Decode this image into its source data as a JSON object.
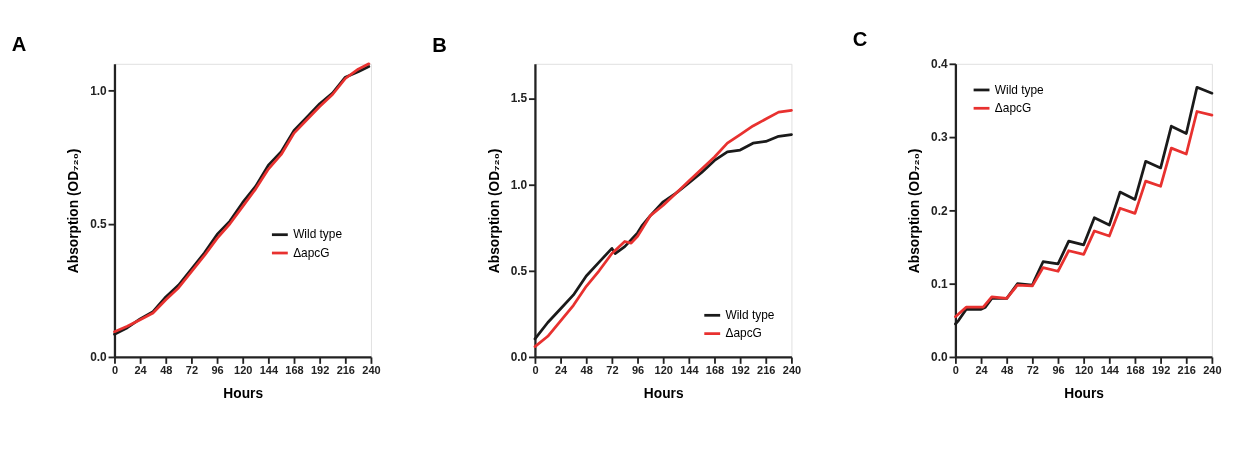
{
  "chart_data": [
    {
      "type": "line",
      "title": "A",
      "xlabel": "Hours",
      "ylabel": "Absorption (OD₇₂₀)",
      "xlim": [
        0,
        240
      ],
      "xticks": [
        0,
        24,
        48,
        72,
        96,
        120,
        144,
        168,
        192,
        216,
        240
      ],
      "ylim": [
        0,
        1.1
      ],
      "yticks": [
        {
          "value": 0,
          "label": "0.0"
        },
        {
          "value": 0.5,
          "label": "0.5"
        },
        {
          "value": 1,
          "label": "1.0"
        }
      ],
      "grid": false,
      "legend": "right",
      "line_style": "solid",
      "series": [
        {
          "name": "Wild type",
          "color": "#1a1a1a",
          "x": [
            0,
            12,
            24,
            36,
            48,
            60,
            72,
            84,
            96,
            108,
            120,
            132,
            144,
            156,
            168,
            180,
            192,
            204,
            216,
            228,
            238
          ],
          "values": [
            0.085,
            0.11,
            0.143,
            0.17,
            0.225,
            0.27,
            0.33,
            0.39,
            0.46,
            0.51,
            0.58,
            0.64,
            0.72,
            0.77,
            0.85,
            0.9,
            0.95,
            0.99,
            1.05,
            1.07,
            1.09
          ]
        },
        {
          "name": "ΔapcG",
          "color": "#e8312f",
          "x": [
            0,
            12,
            24,
            36,
            48,
            60,
            72,
            84,
            96,
            108,
            120,
            132,
            144,
            156,
            168,
            180,
            192,
            204,
            216,
            228,
            238
          ],
          "values": [
            0.095,
            0.115,
            0.14,
            0.165,
            0.215,
            0.26,
            0.32,
            0.38,
            0.445,
            0.5,
            0.565,
            0.63,
            0.705,
            0.76,
            0.84,
            0.89,
            0.94,
            0.985,
            1.045,
            1.08,
            1.1
          ]
        }
      ]
    },
    {
      "type": "line",
      "title": "B",
      "xlabel": "Hours",
      "ylabel": "Absorption (OD₇₂₀)",
      "xlim": [
        0,
        240
      ],
      "xticks": [
        0,
        24,
        48,
        72,
        96,
        120,
        144,
        168,
        192,
        216,
        240
      ],
      "ylim": [
        0,
        1.7
      ],
      "yticks": [
        {
          "value": 0,
          "label": "0.0"
        },
        {
          "value": 0.5,
          "label": "0.5"
        },
        {
          "value": 1,
          "label": "1.0"
        },
        {
          "value": 1.5,
          "label": "1.5"
        }
      ],
      "grid": false,
      "legend": "bottom right",
      "line_style": "solid",
      "series": [
        {
          "name": "Wild type",
          "color": "#1a1a1a",
          "x": [
            0,
            12,
            24,
            36,
            48,
            60,
            72,
            75,
            84,
            96,
            100,
            108,
            120,
            132,
            144,
            156,
            168,
            180,
            192,
            204,
            216,
            228,
            240
          ],
          "values": [
            0.105,
            0.2,
            0.28,
            0.36,
            0.47,
            0.55,
            0.63,
            0.6,
            0.64,
            0.72,
            0.76,
            0.82,
            0.9,
            0.95,
            1.01,
            1.07,
            1.14,
            1.19,
            1.2,
            1.24,
            1.25,
            1.28,
            1.29
          ]
        },
        {
          "name": "ΔapcG",
          "color": "#e8312f",
          "x": [
            0,
            12,
            24,
            36,
            48,
            60,
            72,
            84,
            90,
            96,
            108,
            120,
            132,
            144,
            156,
            168,
            180,
            192,
            204,
            216,
            228,
            240
          ],
          "values": [
            0.06,
            0.12,
            0.21,
            0.3,
            0.41,
            0.5,
            0.6,
            0.67,
            0.66,
            0.7,
            0.82,
            0.88,
            0.95,
            1.02,
            1.09,
            1.16,
            1.24,
            1.29,
            1.34,
            1.38,
            1.42,
            1.43
          ]
        }
      ]
    },
    {
      "type": "line",
      "title": "C",
      "xlabel": "Hours",
      "ylabel": "Absorption (OD₇₂₀)",
      "xlim": [
        0,
        240
      ],
      "xticks": [
        0,
        24,
        48,
        72,
        96,
        120,
        144,
        168,
        192,
        216,
        240
      ],
      "ylim": [
        0,
        0.4
      ],
      "yticks": [
        {
          "value": 0,
          "label": "0.0"
        },
        0.1,
        0.2,
        0.3,
        0.4
      ],
      "grid": false,
      "legend": "top left",
      "line_style": "solid",
      "series": [
        {
          "name": "Wild type",
          "color": "#1a1a1a",
          "x": [
            0,
            3,
            10,
            24,
            28,
            34,
            46,
            48,
            58,
            72,
            74,
            82,
            96,
            106,
            120,
            130,
            144,
            154,
            168,
            178,
            192,
            202,
            216,
            226,
            240
          ],
          "values": [
            0.045,
            0.05,
            0.065,
            0.065,
            0.068,
            0.08,
            0.08,
            0.08,
            0.1,
            0.098,
            0.105,
            0.13,
            0.127,
            0.158,
            0.153,
            0.19,
            0.18,
            0.225,
            0.215,
            0.267,
            0.258,
            0.315,
            0.305,
            0.368,
            0.36
          ]
        },
        {
          "name": "ΔapcG",
          "color": "#e8312f",
          "x": [
            0,
            10,
            26,
            34,
            48,
            58,
            72,
            82,
            96,
            106,
            120,
            130,
            144,
            154,
            168,
            178,
            192,
            202,
            216,
            226,
            240
          ],
          "values": [
            0.055,
            0.068,
            0.068,
            0.082,
            0.08,
            0.098,
            0.097,
            0.122,
            0.117,
            0.145,
            0.14,
            0.172,
            0.165,
            0.203,
            0.196,
            0.24,
            0.233,
            0.285,
            0.277,
            0.335,
            0.33
          ]
        }
      ]
    }
  ]
}
